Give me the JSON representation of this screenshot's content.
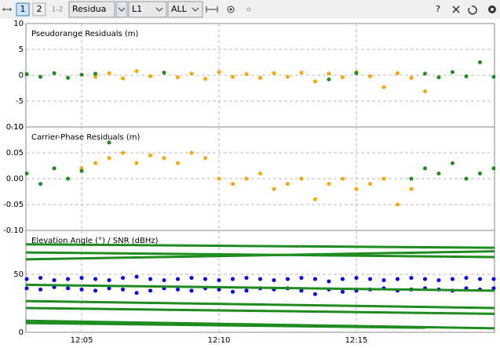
{
  "toolbar": {
    "buttons": [
      "1",
      "2",
      "1-2"
    ],
    "dropdowns": [
      "Residua",
      "L1",
      "ALL"
    ],
    "help": "?"
  },
  "chart_data": [
    {
      "type": "scatter",
      "title": "Pseudorange Residuals (m)",
      "ylim": [
        -10,
        10
      ],
      "yticks": [
        10,
        5,
        0,
        -5,
        -10
      ],
      "grid": true,
      "x": [
        3,
        3.5,
        4,
        4.5,
        5,
        5.5,
        6,
        6.5,
        7,
        7.5,
        8,
        8.5,
        9,
        9.5,
        10,
        10.5,
        11,
        11.5,
        12,
        12.5,
        13,
        13.5,
        14,
        14.5,
        15,
        15.5,
        16,
        16.5,
        17,
        17.5,
        18,
        18.5,
        19,
        19.5,
        20
      ],
      "series": [
        {
          "color": "#ffa500",
          "values": [
            null,
            null,
            null,
            null,
            null,
            -0.3,
            0.4,
            -0.6,
            0.8,
            -0.2,
            0.5,
            -0.4,
            0.3,
            -0.7,
            0.6,
            -0.3,
            0.2,
            -0.5,
            0.4,
            -0.3,
            0.5,
            -1.2,
            0.3,
            -0.4,
            0.6,
            -0.2,
            -2.3,
            0.4,
            -0.5,
            -3.1,
            null,
            null,
            null,
            null,
            null
          ]
        },
        {
          "color": "#1e8c1e",
          "values": [
            0.2,
            -0.3,
            0.4,
            -0.5,
            0.1,
            0.3,
            null,
            null,
            null,
            null,
            0.5,
            null,
            null,
            null,
            null,
            null,
            null,
            null,
            null,
            null,
            null,
            null,
            -0.8,
            null,
            0.4,
            null,
            null,
            null,
            null,
            0.3,
            -0.4,
            0.6,
            -0.2,
            2.5,
            -0.3
          ]
        }
      ]
    },
    {
      "type": "scatter",
      "title": "Carrier-Phase Residuals (m)",
      "ylim": [
        -0.1,
        0.1
      ],
      "yticks": [
        {
          "value": 0.1,
          "label": "0.10"
        },
        0.05,
        {
          "value": 0,
          "label": "0.00"
        },
        -0.05,
        {
          "value": -0.1,
          "label": "-0.10"
        }
      ],
      "grid": true,
      "x": [
        3,
        3.5,
        4,
        4.5,
        5,
        5.5,
        6,
        6.5,
        7,
        7.5,
        8,
        8.5,
        9,
        9.5,
        10,
        10.5,
        11,
        11.5,
        12,
        12.5,
        13,
        13.5,
        14,
        14.5,
        15,
        15.5,
        16,
        16.5,
        17,
        17.5,
        18,
        18.5,
        19,
        19.5,
        20
      ],
      "series": [
        {
          "color": "#ffa500",
          "values": [
            null,
            null,
            null,
            null,
            0.02,
            0.03,
            0.04,
            0.05,
            0.03,
            0.045,
            0.04,
            0.03,
            0.05,
            0.04,
            0.0,
            -0.01,
            0.0,
            0.01,
            -0.02,
            -0.01,
            0.0,
            -0.04,
            -0.01,
            0.0,
            -0.02,
            -0.01,
            0.0,
            -0.05,
            -0.02,
            null,
            null,
            null,
            null,
            null,
            null
          ]
        },
        {
          "color": "#1e8c1e",
          "values": [
            0.01,
            -0.01,
            0.02,
            0.0,
            0.015,
            null,
            0.07,
            null,
            null,
            null,
            null,
            null,
            null,
            null,
            null,
            null,
            null,
            null,
            null,
            null,
            null,
            null,
            null,
            null,
            null,
            null,
            null,
            null,
            0.0,
            0.02,
            0.01,
            0.03,
            0.0,
            0.01,
            0.02
          ]
        }
      ]
    },
    {
      "type": "scatter",
      "title": "Elevation Angle (°) / SNR (dBHz)",
      "ylim": [
        0,
        88
      ],
      "yticks": [
        50,
        0
      ],
      "grid": true,
      "xlim": [
        2.97,
        20.03
      ],
      "xticks": [
        {
          "value": 5,
          "label": "12:05"
        },
        {
          "value": 10,
          "label": "12:10"
        },
        {
          "value": 15,
          "label": "12:15"
        }
      ],
      "x": [
        3,
        3.5,
        4,
        4.5,
        5,
        5.5,
        6,
        6.5,
        7,
        7.5,
        8,
        8.5,
        9,
        9.5,
        10,
        10.5,
        11,
        11.5,
        12,
        12.5,
        13,
        13.5,
        14,
        14.5,
        15,
        15.5,
        16,
        16.5,
        17,
        17.5,
        18,
        18.5,
        19,
        19.5,
        20
      ],
      "series": [
        {
          "color": "#0000ff",
          "values": [
            46,
            47,
            45,
            46,
            47,
            46,
            45,
            47,
            48,
            46,
            45,
            46,
            47,
            46,
            45,
            46,
            47,
            46,
            45,
            46,
            47,
            46,
            44,
            46,
            47,
            46,
            45,
            46,
            47,
            46,
            45,
            46,
            47,
            46,
            46
          ]
        },
        {
          "color": "#0000ff",
          "values": [
            38,
            37,
            39,
            38,
            37,
            36,
            38,
            37,
            34,
            36,
            38,
            37,
            36,
            38,
            37,
            35,
            36,
            38,
            37,
            38,
            36,
            33,
            37,
            35,
            36,
            37,
            38,
            36,
            37,
            38,
            37,
            36,
            38,
            37,
            38
          ]
        },
        {
          "color": "#1e8c1e",
          "mode": "line",
          "x": [
            2.97,
            20.03
          ],
          "values": [
            76,
            73
          ]
        },
        {
          "color": "#1e8c1e",
          "mode": "line",
          "x": [
            2.97,
            20.03
          ],
          "values": [
            69,
            65
          ]
        },
        {
          "color": "#1e8c1e",
          "mode": "line",
          "x": [
            2.97,
            20.03
          ],
          "values": [
            63,
            70
          ]
        },
        {
          "color": "#1e8c1e",
          "mode": "line",
          "x": [
            2.97,
            20.03
          ],
          "values": [
            41,
            36
          ]
        },
        {
          "color": "#1e8c1e",
          "mode": "line",
          "x": [
            2.97,
            20.03
          ],
          "values": [
            27,
            21
          ]
        },
        {
          "color": "#1e8c1e",
          "mode": "line",
          "x": [
            2.97,
            20.03
          ],
          "values": [
            21,
            16
          ]
        },
        {
          "color": "#1e8c1e",
          "mode": "line",
          "x": [
            2.97,
            20.03
          ],
          "values": [
            10,
            3.5
          ]
        },
        {
          "color": "#1e8c1e",
          "mode": "line",
          "x": [
            2.97,
            17.5
          ],
          "values": [
            8,
            4
          ]
        }
      ]
    }
  ]
}
